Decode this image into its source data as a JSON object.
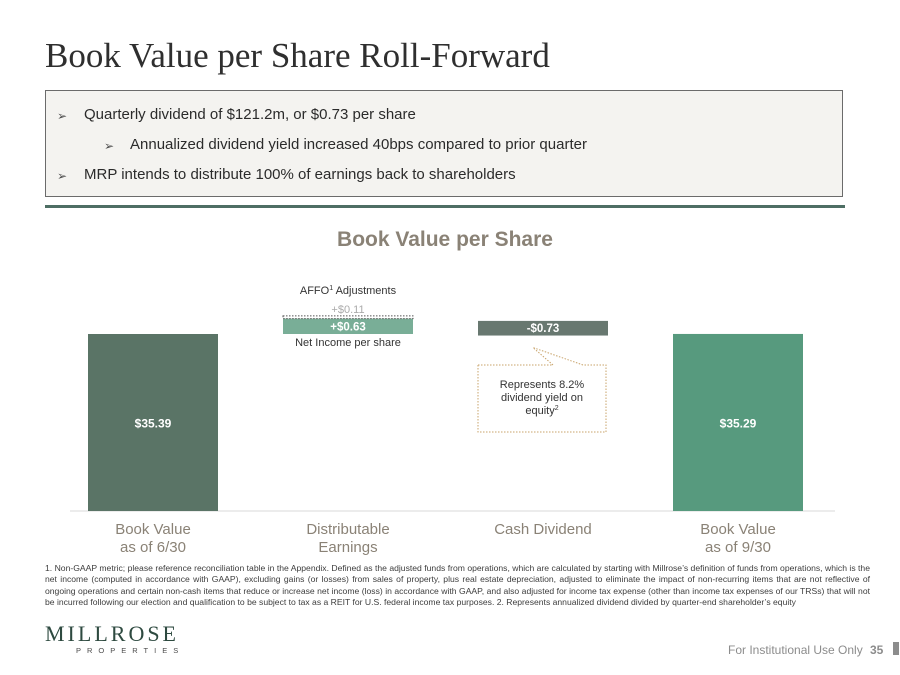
{
  "slide": {
    "title": "Book Value per Share Roll-Forward",
    "bullets": [
      "Quarterly dividend of $121.2m, or $0.73 per share",
      "Annualized dividend yield increased 40bps compared to prior quarter",
      "MRP intends to distribute 100% of earnings back to shareholders"
    ],
    "bullet_glyph": "➢"
  },
  "chart_data": {
    "type": "bar",
    "subtype": "waterfall",
    "title": "Book Value per Share",
    "categories": [
      "Book Value\nas of 6/30",
      "Distributable\nEarnings",
      "Cash Dividend",
      "Book Value\nas of 9/30"
    ],
    "category_lines": [
      [
        "Book Value",
        "as of 6/30"
      ],
      [
        "Distributable",
        "Earnings"
      ],
      [
        "Cash Dividend"
      ],
      [
        "Book Value",
        "as of 9/30"
      ]
    ],
    "bars": [
      {
        "category": "Book Value as of 6/30",
        "value": 35.39,
        "label": "$35.39",
        "color": "#5a7466",
        "kind": "total"
      },
      {
        "category": "Distributable Earnings",
        "value": 0.63,
        "label": "+$0.63",
        "color": "#79ae97",
        "kind": "increase",
        "sublabel": "Net Income per share"
      },
      {
        "category": "Distributable Earnings",
        "value": 0.11,
        "label": "+$0.11",
        "color": "none",
        "kind": "increase-dotted",
        "sublabel": "AFFO1 Adjustments"
      },
      {
        "category": "Cash Dividend",
        "value": -0.73,
        "label": "-$0.73",
        "color": "#687870",
        "kind": "decrease"
      },
      {
        "category": "Book Value as of 9/30",
        "value": 35.29,
        "label": "$35.29",
        "color": "#579a7e",
        "kind": "total"
      }
    ],
    "annotations": {
      "affo_label": "AFFO",
      "affo_sup": "1",
      "affo_suffix": " Adjustments",
      "net_income_label": "Net Income per share",
      "callout_lines": [
        "Represents 8.2%",
        "dividend yield on",
        "equity"
      ],
      "callout_sup": "2"
    }
  },
  "footer": {
    "footnote": "1. Non-GAAP metric; please reference reconciliation table in the Appendix. Defined as the adjusted funds from operations, which are calculated by starting with Millrose’s definition of funds from operations, which is the net income (computed in accordance with GAAP), excluding gains (or losses) from sales of property, plus real estate depreciation, adjusted to eliminate the impact of non-recurring items that are not reflective of ongoing operations and certain non-cash items that reduce or increase net income (loss) in accordance with GAAP, and also adjusted for income tax expense (other than income tax expenses of our TRSs) that will not be incurred following our election and qualification to be subject to tax as a REIT for U.S. federal income tax purposes. 2. Represents annualized dividend divided by quarter-end shareholder’s equity",
    "logo": "MILLROSE",
    "logo_sub": "PROPERTIES",
    "notice": "For Institutional Use Only",
    "page": "35"
  },
  "colors": {
    "accent": "#4e6e64",
    "axis_label": "#8a8276"
  }
}
